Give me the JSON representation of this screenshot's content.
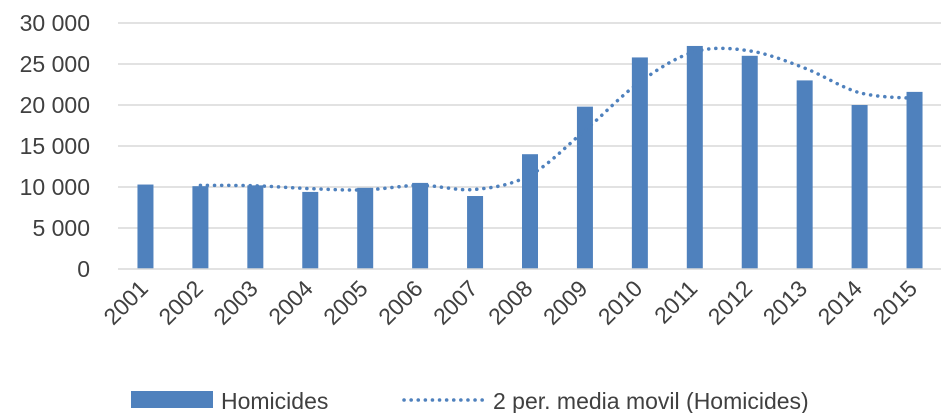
{
  "chart_data": {
    "type": "bar",
    "categories": [
      "2001",
      "2002",
      "2003",
      "2004",
      "2005",
      "2006",
      "2007",
      "2008",
      "2009",
      "2010",
      "2011",
      "2012",
      "2013",
      "2014",
      "2015"
    ],
    "series": [
      {
        "name": "Homicides",
        "type": "bar",
        "color": "#4f81bd",
        "values": [
          10300,
          10100,
          10200,
          9400,
          9900,
          10500,
          8900,
          14000,
          19800,
          25800,
          27200,
          26000,
          23000,
          20000,
          21600
        ]
      },
      {
        "name": "2 per. media movil (Homicides)",
        "type": "line",
        "style": "dotted",
        "color": "#4f81bd",
        "values": [
          null,
          10200,
          10150,
          9800,
          9650,
          10200,
          9700,
          11450,
          16900,
          22800,
          26500,
          26600,
          24500,
          21500,
          20800
        ]
      }
    ],
    "y_ticks": [
      "0",
      "5 000",
      "10 000",
      "15 000",
      "20 000",
      "25 000",
      "30 000"
    ],
    "ylim": [
      0,
      30000
    ],
    "grid": true,
    "legend": "bottom"
  }
}
